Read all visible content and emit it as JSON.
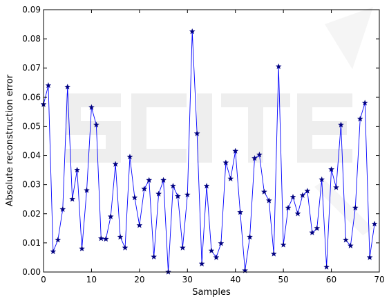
{
  "chart_data": {
    "type": "line",
    "xlabel": "Samples",
    "ylabel": "Absolute reconstruction error",
    "xlim": [
      0,
      70
    ],
    "ylim": [
      0,
      0.09
    ],
    "xticks": [
      0,
      10,
      20,
      30,
      40,
      50,
      60,
      70
    ],
    "xtick_labels": [
      "0",
      "10",
      "20",
      "30",
      "40",
      "50",
      "60",
      "70"
    ],
    "yticks": [
      0,
      0.01,
      0.02,
      0.03,
      0.04,
      0.05,
      0.06,
      0.07,
      0.08,
      0.09
    ],
    "ytick_labels": [
      "0.00",
      "0.01",
      "0.02",
      "0.03",
      "0.04",
      "0.05",
      "0.06",
      "0.07",
      "0.08",
      "0.09"
    ],
    "grid": false,
    "series": [
      {
        "color": "#0000ff",
        "marker": "star",
        "marker_color": "#000080",
        "x": [
          0,
          1,
          2,
          3,
          4,
          5,
          6,
          7,
          8,
          9,
          10,
          11,
          12,
          13,
          14,
          15,
          16,
          17,
          18,
          19,
          20,
          21,
          22,
          23,
          24,
          25,
          26,
          27,
          28,
          29,
          30,
          31,
          32,
          33,
          34,
          35,
          36,
          37,
          38,
          39,
          40,
          41,
          42,
          43,
          44,
          45,
          46,
          47,
          48,
          49,
          50,
          51,
          52,
          53,
          54,
          55,
          56,
          57,
          58,
          59,
          60,
          61,
          62,
          63,
          64,
          65,
          66,
          67,
          68,
          69
        ],
        "y": [
          0.0575,
          0.064,
          0.007,
          0.011,
          0.0215,
          0.0635,
          0.025,
          0.035,
          0.008,
          0.028,
          0.0565,
          0.0505,
          0.0115,
          0.0113,
          0.019,
          0.037,
          0.012,
          0.0083,
          0.0395,
          0.0255,
          0.016,
          0.0285,
          0.0315,
          0.0052,
          0.0268,
          0.0315,
          0.0,
          0.0295,
          0.026,
          0.0083,
          0.0265,
          0.0825,
          0.0475,
          0.0028,
          0.0295,
          0.0073,
          0.005,
          0.0098,
          0.0375,
          0.032,
          0.0415,
          0.0205,
          0.0005,
          0.012,
          0.039,
          0.0402,
          0.0275,
          0.0245,
          0.0062,
          0.0705,
          0.0093,
          0.022,
          0.0257,
          0.02,
          0.0263,
          0.0278,
          0.0135,
          0.015,
          0.0317,
          0.0017,
          0.0352,
          0.029,
          0.0505,
          0.011,
          0.009,
          0.022,
          0.0525,
          0.058,
          0.005,
          0.0165
        ]
      }
    ]
  }
}
